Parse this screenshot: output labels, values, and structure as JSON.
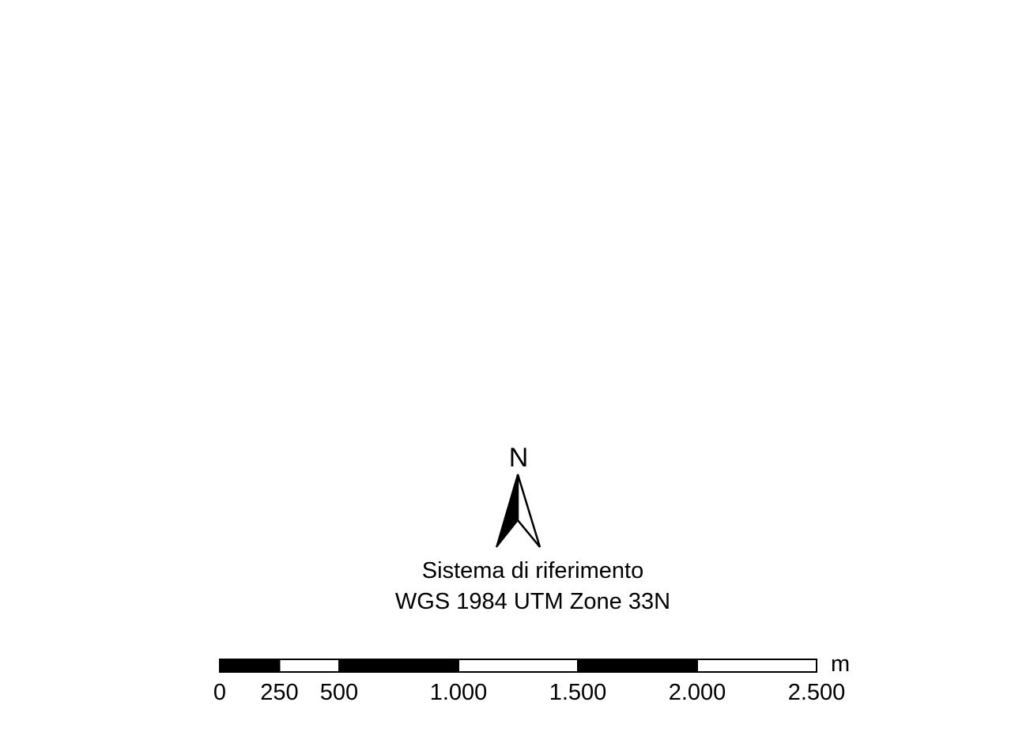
{
  "north_arrow": {
    "letter": "N",
    "icon": "north-arrow-icon"
  },
  "reference_system": {
    "title": "Sistema di riferimento",
    "name": "WGS 1984 UTM Zone 33N"
  },
  "scale_bar": {
    "unit": "m",
    "max_value": 2500,
    "segments": [
      {
        "from": 0,
        "to": 250,
        "fill": "#000000"
      },
      {
        "from": 250,
        "to": 500,
        "fill": "#ffffff"
      },
      {
        "from": 500,
        "to": 1000,
        "fill": "#000000"
      },
      {
        "from": 1000,
        "to": 1500,
        "fill": "#ffffff"
      },
      {
        "from": 1500,
        "to": 2000,
        "fill": "#000000"
      },
      {
        "from": 2000,
        "to": 2500,
        "fill": "#ffffff"
      }
    ],
    "ticks": [
      {
        "value": 0,
        "label": "0"
      },
      {
        "value": 250,
        "label": "250"
      },
      {
        "value": 500,
        "label": "500"
      },
      {
        "value": 1000,
        "label": "1.000"
      },
      {
        "value": 1500,
        "label": "1.500"
      },
      {
        "value": 2000,
        "label": "2.000"
      },
      {
        "value": 2500,
        "label": "2.500"
      }
    ]
  },
  "colors": {
    "ink": "#000000",
    "paper": "#ffffff"
  }
}
